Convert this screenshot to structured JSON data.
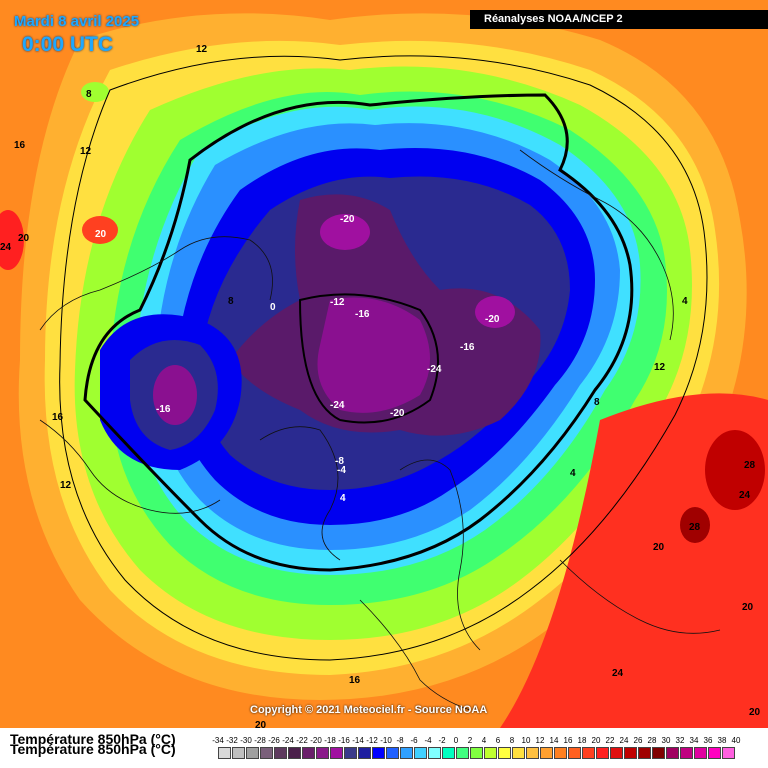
{
  "header": {
    "date": "Mardi 8 avril 2025",
    "time": "0:00 UTC",
    "source": "Réanalyses NOAA/NCEP 2",
    "copyright": "Copyright © 2021 Meteociel.fr - Source NOAA"
  },
  "legend": {
    "title": "Température 850hPa (°C)",
    "ticks": [
      "-34",
      "-32",
      "-30",
      "-28",
      "-26",
      "-24",
      "-22",
      "-20",
      "-18",
      "-16",
      "-14",
      "-12",
      "-10",
      "-8",
      "-6",
      "-4",
      "-2",
      "0",
      "2",
      "4",
      "6",
      "8",
      "10",
      "12",
      "14",
      "16",
      "18",
      "20",
      "22",
      "24",
      "26",
      "28",
      "30",
      "32",
      "34",
      "36",
      "38",
      "40"
    ],
    "colors": [
      "#d9d9d9",
      "#bfbfbf",
      "#a0a0a0",
      "#7a5f7a",
      "#5e3a5e",
      "#4a1f4a",
      "#6a1f6a",
      "#8a1a8a",
      "#a010a0",
      "#3a3a8a",
      "#1e1ea0",
      "#0000ff",
      "#2060ff",
      "#30a0ff",
      "#40d0ff",
      "#80ffff",
      "#00ffc0",
      "#40ff80",
      "#80ff40",
      "#c0ff30",
      "#ffff40",
      "#ffe040",
      "#ffc040",
      "#ffa030",
      "#ff8020",
      "#ff6020",
      "#ff4020",
      "#ff2020",
      "#e01010",
      "#c00000",
      "#a00000",
      "#800000",
      "#a00060",
      "#c00080",
      "#e000a0",
      "#ff00c0",
      "#ff60e0"
    ]
  },
  "labels": [
    {
      "text": "12",
      "color": "dark"
    },
    {
      "text": "8",
      "color": "dark"
    },
    {
      "text": "16",
      "color": "dark"
    },
    {
      "text": "12",
      "color": "dark"
    },
    {
      "text": "24",
      "color": "dark"
    },
    {
      "text": "20",
      "color": "dark"
    },
    {
      "text": "20",
      "color": "light"
    },
    {
      "text": "8",
      "color": "dark"
    },
    {
      "text": "0",
      "color": "light"
    },
    {
      "text": "-12",
      "color": "light"
    },
    {
      "text": "-16",
      "color": "light"
    },
    {
      "text": "-20",
      "color": "light"
    },
    {
      "text": "-20",
      "color": "light"
    },
    {
      "text": "-16",
      "color": "light"
    },
    {
      "text": "-24",
      "color": "light"
    },
    {
      "text": "-16",
      "color": "light"
    },
    {
      "text": "-24",
      "color": "light"
    },
    {
      "text": "-20",
      "color": "light"
    },
    {
      "text": "-8",
      "color": "light"
    },
    {
      "text": "-4",
      "color": "light"
    },
    {
      "text": "4",
      "color": "light"
    },
    {
      "text": "16",
      "color": "dark"
    },
    {
      "text": "12",
      "color": "dark"
    },
    {
      "text": "4",
      "color": "dark"
    },
    {
      "text": "12",
      "color": "dark"
    },
    {
      "text": "8",
      "color": "dark"
    },
    {
      "text": "4",
      "color": "dark"
    },
    {
      "text": "28",
      "color": "dark"
    },
    {
      "text": "24",
      "color": "dark"
    },
    {
      "text": "28",
      "color": "dark"
    },
    {
      "text": "20",
      "color": "dark"
    },
    {
      "text": "20",
      "color": "dark"
    },
    {
      "text": "24",
      "color": "dark"
    },
    {
      "text": "16",
      "color": "dark"
    },
    {
      "text": "20",
      "color": "dark"
    },
    {
      "text": "20",
      "color": "dark"
    }
  ]
}
